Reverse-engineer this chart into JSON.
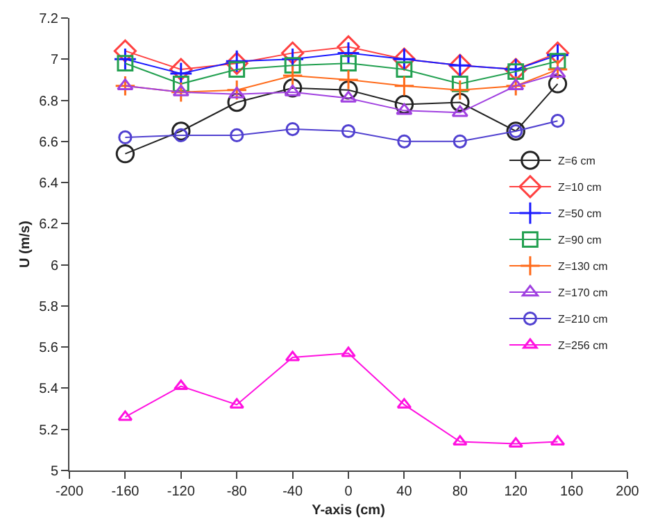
{
  "chart_data": {
    "type": "line",
    "xlabel": "Y-axis (cm)",
    "ylabel": "U (m/s)",
    "x": [
      -160,
      -120,
      -80,
      -40,
      0,
      40,
      80,
      120,
      150
    ],
    "xlim": [
      -200,
      200
    ],
    "xticks": [
      -200,
      -160,
      -120,
      -80,
      -40,
      0,
      40,
      80,
      120,
      160,
      200
    ],
    "ylim": [
      5,
      7.2
    ],
    "yticks": [
      5,
      5.2,
      5.4,
      5.6,
      5.8,
      6,
      6.2,
      6.4,
      6.6,
      6.8,
      7,
      7.2
    ],
    "legend": "right",
    "series": [
      {
        "name": "Z=6 cm",
        "color": "#222222",
        "marker": "circle",
        "values": [
          6.54,
          6.65,
          6.79,
          6.86,
          6.85,
          6.78,
          6.79,
          6.65,
          6.88
        ]
      },
      {
        "name": "Z=10 cm",
        "color": "#ff4040",
        "marker": "diamond",
        "values": [
          7.04,
          6.95,
          6.98,
          7.03,
          7.06,
          7.0,
          6.97,
          6.95,
          7.03
        ]
      },
      {
        "name": "Z=50 cm",
        "color": "#1a1aff",
        "marker": "cross",
        "values": [
          7.0,
          6.93,
          6.99,
          7.0,
          7.03,
          7.0,
          6.97,
          6.95,
          7.02
        ]
      },
      {
        "name": "Z=90 cm",
        "color": "#22a050",
        "marker": "square",
        "values": [
          6.98,
          6.88,
          6.95,
          6.97,
          6.98,
          6.95,
          6.88,
          6.94,
          6.99
        ]
      },
      {
        "name": "Z=130 cm",
        "color": "#ff6a1a",
        "marker": "cross",
        "values": [
          6.87,
          6.84,
          6.85,
          6.92,
          6.9,
          6.87,
          6.85,
          6.87,
          6.95
        ]
      },
      {
        "name": "Z=170 cm",
        "color": "#a040e0",
        "marker": "triangle",
        "values": [
          6.87,
          6.84,
          6.83,
          6.84,
          6.81,
          6.75,
          6.74,
          6.87,
          6.93
        ]
      },
      {
        "name": "Z=210 cm",
        "color": "#5040d0",
        "marker": "circle",
        "values": [
          6.62,
          6.63,
          6.63,
          6.66,
          6.65,
          6.6,
          6.6,
          6.65,
          6.7
        ]
      },
      {
        "name": "Z=256 cm",
        "color": "#ff10e0",
        "marker": "triangle",
        "values": [
          5.26,
          5.41,
          5.32,
          5.55,
          5.57,
          5.32,
          5.14,
          5.13,
          5.14
        ]
      }
    ]
  }
}
